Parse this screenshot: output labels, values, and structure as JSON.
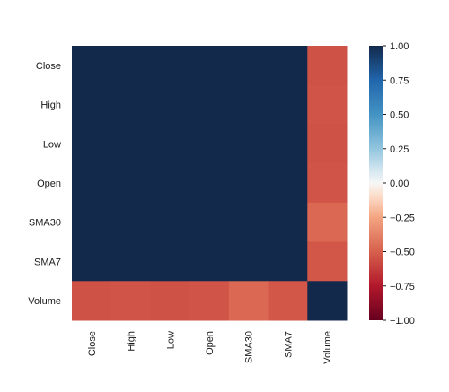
{
  "chart_data": {
    "type": "heatmap",
    "title": "",
    "xlabel": "",
    "ylabel": "",
    "rows": [
      "Close",
      "High",
      "Low",
      "Open",
      "SMA30",
      "SMA7",
      "Volume"
    ],
    "cols": [
      "Close",
      "High",
      "Low",
      "Open",
      "SMA30",
      "SMA7",
      "Volume"
    ],
    "values": [
      [
        1.0,
        1.0,
        1.0,
        1.0,
        1.0,
        1.0,
        -0.55
      ],
      [
        1.0,
        1.0,
        1.0,
        1.0,
        1.0,
        1.0,
        -0.54
      ],
      [
        1.0,
        1.0,
        1.0,
        1.0,
        1.0,
        1.0,
        -0.55
      ],
      [
        1.0,
        1.0,
        1.0,
        1.0,
        1.0,
        1.0,
        -0.54
      ],
      [
        1.0,
        1.0,
        1.0,
        1.0,
        1.0,
        1.0,
        -0.47
      ],
      [
        1.0,
        1.0,
        1.0,
        1.0,
        1.0,
        1.0,
        -0.53
      ],
      [
        -0.55,
        -0.54,
        -0.55,
        -0.54,
        -0.47,
        -0.53,
        1.0
      ]
    ],
    "vmin": -1.0,
    "vmax": 1.0,
    "colormap": "RdBu",
    "colorbar": {
      "ticks": [
        1.0,
        0.75,
        0.5,
        0.25,
        0.0,
        -0.25,
        -0.5,
        -0.75,
        -1.0
      ],
      "tick_labels": [
        "1.00",
        "0.75",
        "0.50",
        "0.25",
        "0.00",
        "−0.25",
        "−0.50",
        "−0.75",
        "−1.00"
      ]
    },
    "grid": false,
    "legend": "colorbar-right"
  }
}
